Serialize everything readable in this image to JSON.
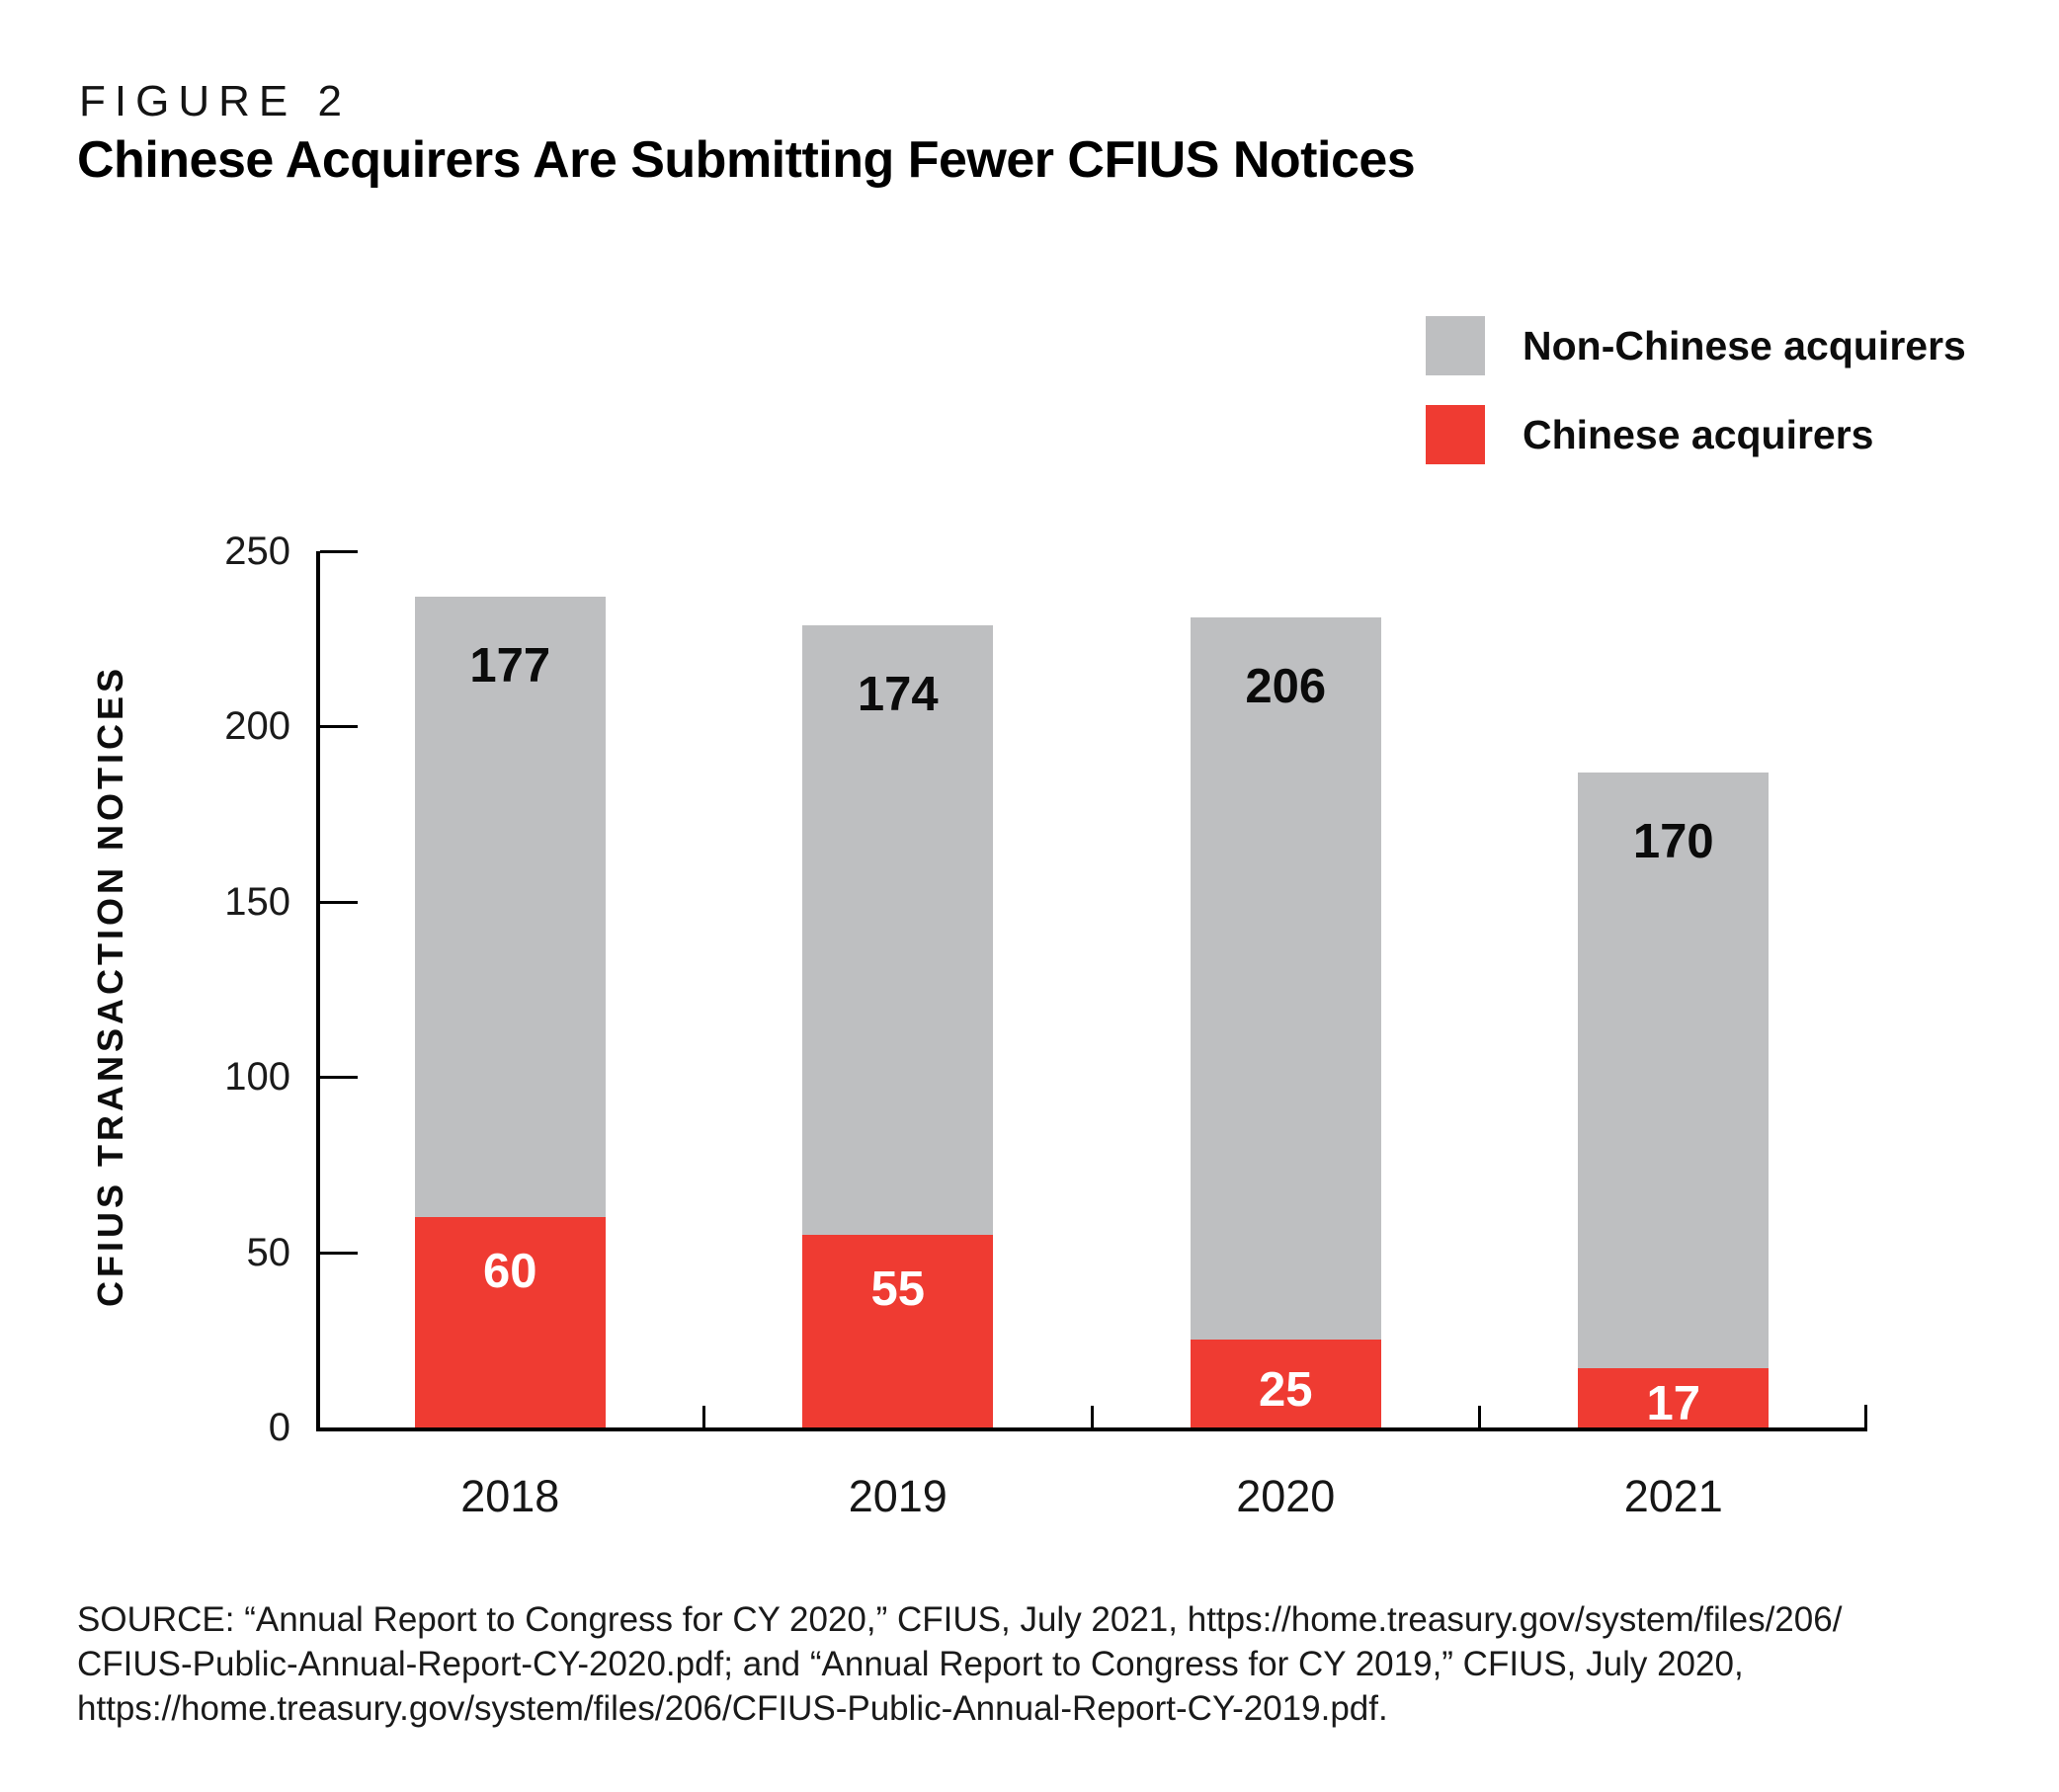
{
  "figure": {
    "label": "FIGURE 2",
    "title": "Chinese Acquirers Are Submitting Fewer CFIUS Notices"
  },
  "legend": [
    {
      "label": "Non-Chinese acquirers",
      "color": "#bebfc1"
    },
    {
      "label": "Chinese acquirers",
      "color": "#ef3b32"
    }
  ],
  "chart_data": {
    "type": "bar",
    "stacked": true,
    "title": "Chinese Acquirers Are Submitting Fewer CFIUS Notices",
    "categories": [
      "2018",
      "2019",
      "2020",
      "2021"
    ],
    "series": [
      {
        "name": "Chinese acquirers",
        "color": "#ef3b32",
        "label_color": "#ffffff",
        "values": [
          60,
          55,
          25,
          17
        ]
      },
      {
        "name": "Non-Chinese acquirers",
        "color": "#bebfc1",
        "label_color": "#0b0b0b",
        "values": [
          177,
          174,
          206,
          170
        ]
      }
    ],
    "xlabel": "",
    "ylabel": "CFIUS TRANSACTION NOTICES",
    "ylim": [
      0,
      250
    ],
    "yticks": [
      0,
      50,
      100,
      150,
      200,
      250
    ],
    "grid": false,
    "legend_position": "top-right",
    "bar_value_labels": true
  },
  "source": {
    "lines": [
      "SOURCE: “Annual Report to Congress for CY 2020,” CFIUS, July 2021, https://home.treasury.gov/system/files/206/",
      "CFIUS-Public-Annual-Report-CY-2020.pdf; and “Annual Report to Congress for CY 2019,” CFIUS, July 2020,",
      "https://home.treasury.gov/system/files/206/CFIUS-Public-Annual-Report-CY-2019.pdf."
    ]
  }
}
